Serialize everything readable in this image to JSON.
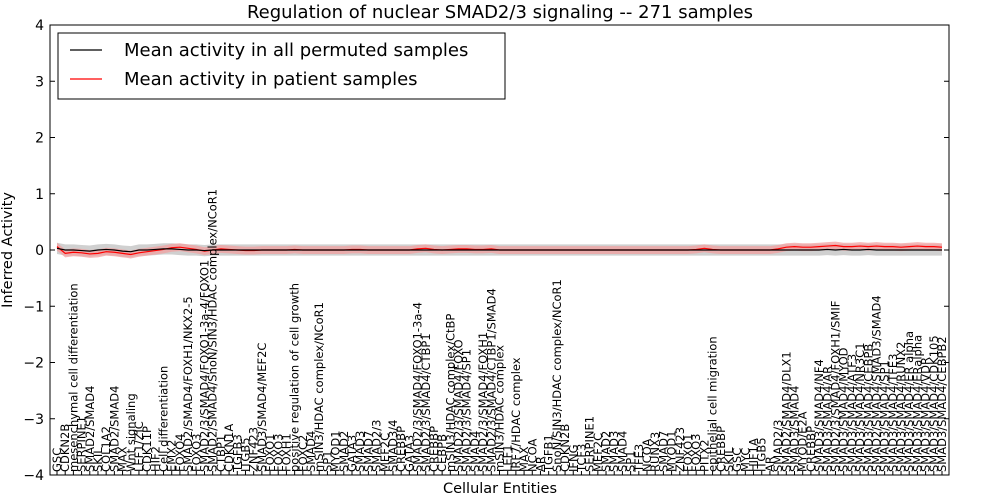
{
  "chart_data": {
    "type": "line",
    "title": "Regulation of nuclear SMAD2/3 signaling -- 271 samples",
    "xlabel": "Cellular Entities",
    "ylabel": "Inferred Activity",
    "ylim": [
      -4,
      4
    ],
    "yticks": [
      "4",
      "3",
      "2",
      "1",
      "0",
      "−1",
      "−2",
      "−3",
      "−4"
    ],
    "legend_position": "top-left",
    "colors": {
      "permuted": "#000000",
      "patient": "#ff0000",
      "band_permuted": "#c8c8c8",
      "band_patient": "#f2a0a0"
    },
    "categories": [
      "GSC",
      "CDKN2B",
      "mesenchymal cell differentiation",
      "SERPINE1",
      "SMAD2/SMAD4",
      "SKIL",
      "COL1A2",
      "SMAD2/SMAD4",
      "MAX",
      "Wnt signaling",
      "LEF1/ZIC",
      "CDK11P",
      "HIF2",
      "Cell differentiation",
      "EMX2",
      "FOXO4",
      "SMAD2/SMAD4/FOXH1/NKX2-5",
      "FOXO3",
      "SMAD2/3/SMAD4/FOXO1-3a-4/FOXO1",
      "SMAD2/SMAD4/SnoN/SIN3/HDAC complex/NCoR1",
      "CTBP1",
      "CDKN1A",
      "TGFB3",
      "ITGB5",
      "ZNF423",
      "SMAD3/SMAD4/MEF2C",
      "FOXO1",
      "FOXO3",
      "FOXH1",
      "positive regulation of cell growth",
      "FOXC2",
      "SMAD4",
      "mSIN3/HDAC complex/NCoR1",
      "SP1",
      "MYOD1",
      "SMAD2",
      "GATA3",
      "SMAD3",
      "SMAD7",
      "SMAD2/3",
      "MEF2C",
      "SMAD3/4",
      "CREBBP",
      "GATA3",
      "SMAD2/3/SMAD4/FOXO1-3a-4",
      "SMAD2/3/SMAD4/CTBP1",
      "CREBBP",
      "CEBPB",
      "mSIN3/HDAC complex/CtBP",
      "SMAD2/3/SMAD4/FOXO",
      "SMAD2/3/SMAD4/SP1",
      "SMAD4",
      "SMAD2/3/SMAD4/FOXH1",
      "SMAD2/3/SMAD4/CTBP1/SMAD4",
      "mSIN3/HDAC complex",
      "LEF1",
      "IRF7/HDAC complex",
      "MAX",
      "NCOA",
      "AR",
      "TGFB1",
      "SnoN/SIN3/HDAC complex/NCoR1",
      "CDKN2B",
      "IFNG",
      "TCF3",
      "SERPINE1",
      "MEF2C",
      "SMAD2",
      "SMAD3",
      "SMAD4",
      "SP1",
      "TFE3",
      "NCOA",
      "RUNX3",
      "SMAD7",
      "MYOD1",
      "ZNF423",
      "FOXO1",
      "FOXO3",
      "PITX2",
      "epithelial cell migration",
      "CREBBP",
      "SKIL",
      "GSC",
      "MYC",
      "HIF1A",
      "ITGB5",
      "AR",
      "SMAD2/3",
      "SMAD2/SMAD4/DLX1",
      "SMAD3/SMAD4",
      "MYOD/E2A",
      "CREBBP",
      "SMAD3/SMAD4/NF4",
      "SMAD3/SMAD4/AR",
      "SMAD2/3/SMAD4/FOXH1/SMIF",
      "SMAD3/SMAD4/MYOD",
      "SMAD3/SMAD4/ATF3",
      "SMAD3/SMAD4/NR3C1",
      "SMAD3/SMAD4/CEBPB",
      "SMAD2/SMAD4/SMAD3/SMAD4",
      "SMAD3/SMAD4/SP1",
      "SMAD3/SMAD4/TFE3",
      "SMAD3/SMAD4/RUNX2",
      "SMAD3/SMAD4/ER alpha",
      "SMAD3/SMAD4/ERalpha",
      "SMAD3/SMAD4/VDR",
      "SMAD3/SMAD4/CDK105",
      "SMAD3/SMAD4/CEBPB2"
    ],
    "series": [
      {
        "name": "Mean activity in all permuted samples",
        "values": [
          0.03,
          0.0,
          0.0,
          -0.01,
          -0.02,
          0.0,
          0.01,
          0.0,
          -0.02,
          -0.03,
          0.0,
          0.0,
          0.01,
          0.02,
          0.02,
          0.01,
          0.0,
          0.0,
          -0.01,
          0.0,
          0.0,
          0.0,
          0.0,
          0.0,
          0.0,
          0.0,
          0.0,
          0.0,
          0.0,
          0.0,
          0.0,
          0.0,
          0.0,
          0.0,
          0.0,
          0.0,
          0.0,
          0.0,
          0.0,
          0.0,
          0.0,
          0.0,
          0.0,
          0.0,
          0.0,
          0.0,
          0.0,
          0.0,
          0.0,
          0.0,
          0.0,
          0.0,
          0.0,
          0.0,
          0.0,
          0.0,
          0.0,
          0.0,
          0.0,
          0.0,
          0.0,
          0.0,
          0.0,
          0.0,
          0.0,
          0.0,
          0.0,
          0.0,
          0.0,
          0.0,
          0.0,
          0.0,
          0.0,
          0.0,
          0.0,
          0.0,
          0.0,
          0.0,
          0.0,
          0.0,
          0.0,
          0.0,
          0.0,
          0.0,
          0.0,
          0.0,
          0.0,
          0.0,
          0.0,
          0.0,
          0.0,
          0.0,
          0.0,
          0.0,
          0.01,
          0.0,
          0.01,
          0.0,
          0.0,
          0.01,
          0.0,
          0.0,
          0.0,
          0.0,
          0.0,
          0.0,
          0.0,
          0.0,
          0.0
        ]
      },
      {
        "name": "Mean activity in patient samples",
        "values": [
          0.06,
          -0.06,
          -0.04,
          -0.05,
          -0.07,
          -0.06,
          -0.03,
          -0.04,
          -0.06,
          -0.08,
          -0.05,
          -0.03,
          -0.01,
          0.01,
          0.04,
          0.05,
          0.03,
          0.01,
          -0.02,
          0.0,
          0.02,
          0.01,
          0.0,
          -0.01,
          -0.01,
          0.0,
          0.0,
          0.0,
          0.0,
          0.01,
          0.0,
          0.0,
          0.0,
          0.0,
          0.0,
          0.0,
          0.01,
          0.01,
          0.0,
          0.0,
          0.0,
          0.0,
          0.0,
          0.0,
          0.02,
          0.03,
          0.01,
          0.0,
          0.01,
          0.02,
          0.02,
          0.01,
          0.01,
          0.02,
          0.0,
          0.0,
          0.0,
          0.0,
          0.0,
          0.0,
          0.0,
          0.0,
          0.0,
          0.0,
          0.0,
          0.0,
          0.0,
          0.0,
          0.0,
          0.0,
          0.0,
          0.0,
          0.0,
          0.0,
          0.0,
          0.0,
          0.0,
          0.0,
          0.01,
          0.03,
          0.01,
          0.0,
          0.0,
          0.0,
          0.0,
          0.0,
          0.0,
          0.0,
          0.02,
          0.05,
          0.06,
          0.05,
          0.05,
          0.06,
          0.07,
          0.08,
          0.06,
          0.06,
          0.07,
          0.06,
          0.07,
          0.06,
          0.06,
          0.05,
          0.06,
          0.07,
          0.06,
          0.06,
          0.05
        ]
      }
    ],
    "band_half_width": {
      "permuted": 0.1,
      "patient": 0.07
    }
  }
}
